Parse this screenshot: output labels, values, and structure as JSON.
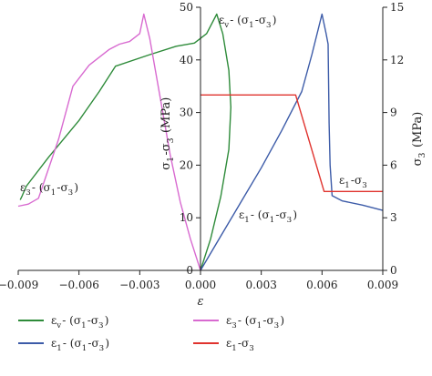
{
  "chart_data": {
    "type": "line",
    "title": "",
    "xlabel": "ε",
    "ylabel_left": "σ1-σ3 (MPa)",
    "ylabel_right": "σ3 (MPa)",
    "xlim": [
      -0.009,
      0.009
    ],
    "ylim_left": [
      0,
      50
    ],
    "ylim_right": [
      0,
      15
    ],
    "x_ticks": [
      "−0.009",
      "−0.006",
      "−0.003",
      "0.000",
      "0.003",
      "0.006",
      "0.009"
    ],
    "y_left_ticks": [
      "0",
      "10",
      "20",
      "30",
      "40",
      "50"
    ],
    "y_right_ticks": [
      "0",
      "3",
      "6",
      "9",
      "12",
      "15"
    ],
    "grid": false,
    "legend_position": "bottom",
    "colors": {
      "green": "#2e8b3a",
      "magenta": "#d86ad0",
      "blue": "#3c5ba8",
      "red": "#e0332e",
      "axis": "#222222"
    },
    "series": [
      {
        "name": "εv- (σ1-σ3)",
        "color": "#2e8b3a",
        "axis": "left",
        "points": [
          [
            -0.0089,
            13.4
          ],
          [
            -0.0088,
            14.2
          ],
          [
            -0.0086,
            16.0
          ],
          [
            -0.0075,
            21.5
          ],
          [
            -0.006,
            28.5
          ],
          [
            -0.005,
            34.0
          ],
          [
            -0.0042,
            38.8
          ],
          [
            -0.0025,
            41.0
          ],
          [
            -0.0012,
            42.6
          ],
          [
            -0.0003,
            43.2
          ],
          [
            0.0003,
            45.0
          ],
          [
            0.0008,
            48.7
          ],
          [
            0.0011,
            45.0
          ],
          [
            0.0014,
            38.0
          ],
          [
            0.0015,
            31.0
          ],
          [
            0.0014,
            23.0
          ],
          [
            0.001,
            14.0
          ],
          [
            0.0005,
            6.0
          ],
          [
            0.0,
            0.0
          ]
        ]
      },
      {
        "name": "ε3- (σ1-σ3)",
        "color": "#d86ad0",
        "axis": "left",
        "points": [
          [
            -0.009,
            12.2
          ],
          [
            -0.0085,
            12.6
          ],
          [
            -0.008,
            13.7
          ],
          [
            -0.007,
            25.0
          ],
          [
            -0.0063,
            35.0
          ],
          [
            -0.0055,
            39.0
          ],
          [
            -0.0045,
            42.0
          ],
          [
            -0.004,
            43.0
          ],
          [
            -0.0035,
            43.5
          ],
          [
            -0.003,
            45.0
          ],
          [
            -0.0028,
            48.7
          ],
          [
            -0.0025,
            44.0
          ],
          [
            -0.002,
            33.0
          ],
          [
            -0.0015,
            22.0
          ],
          [
            -0.001,
            13.0
          ],
          [
            -0.0005,
            6.0
          ],
          [
            0.0,
            0.0
          ]
        ]
      },
      {
        "name": "ε1- (σ1-σ3)",
        "color": "#3c5ba8",
        "axis": "left",
        "points": [
          [
            0.0,
            0.0
          ],
          [
            0.001,
            6.5
          ],
          [
            0.002,
            13.0
          ],
          [
            0.003,
            19.5
          ],
          [
            0.004,
            26.5
          ],
          [
            0.005,
            34.0
          ],
          [
            0.0055,
            41.0
          ],
          [
            0.006,
            48.7
          ],
          [
            0.0062,
            45.0
          ],
          [
            0.0063,
            43.0
          ],
          [
            0.00635,
            28.0
          ],
          [
            0.0064,
            20.0
          ],
          [
            0.0065,
            14.2
          ],
          [
            0.007,
            13.2
          ],
          [
            0.008,
            12.4
          ],
          [
            0.009,
            11.4
          ]
        ]
      },
      {
        "name": "ε1-σ3",
        "color": "#e0332e",
        "axis": "right",
        "points": [
          [
            0.0,
            10.0
          ],
          [
            0.0047,
            10.0
          ],
          [
            0.0061,
            4.5
          ],
          [
            0.009,
            4.5
          ]
        ]
      }
    ],
    "annotations": [
      {
        "text": "εv- (σ1-σ3)",
        "series": "green"
      },
      {
        "text": "ε3- (σ1-σ3)",
        "series": "magenta"
      },
      {
        "text": "ε1- (σ1-σ3)",
        "series": "blue"
      },
      {
        "text": "ε1-σ3",
        "series": "red"
      }
    ]
  }
}
